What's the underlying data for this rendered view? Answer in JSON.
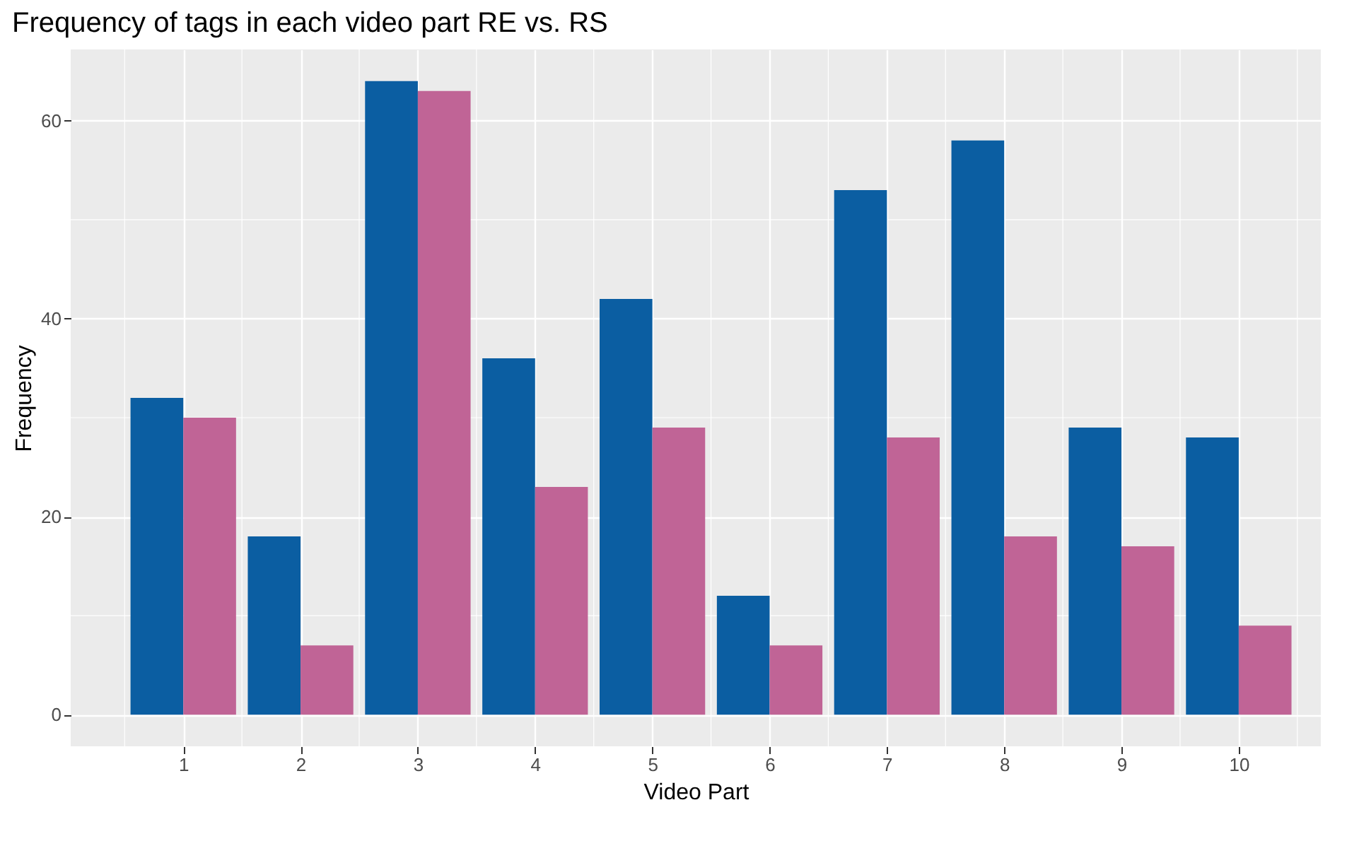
{
  "chart_data": {
    "type": "bar",
    "title": "Frequency of tags in each video part RE vs. RS",
    "xlabel": "Video Part",
    "ylabel": "Frequency",
    "x": [
      1,
      2,
      3,
      4,
      5,
      6,
      7,
      8,
      9,
      10
    ],
    "series": [
      {
        "color": "#0b5ea2",
        "values": [
          32,
          18,
          64,
          36,
          42,
          12,
          53,
          58,
          29,
          28
        ]
      },
      {
        "color": "#c06496",
        "values": [
          30,
          7,
          63,
          23,
          29,
          7,
          28,
          18,
          17,
          9
        ]
      }
    ],
    "xlim": [
      0.04,
      10.7
    ],
    "xticks": [
      1,
      2,
      3,
      4,
      5,
      6,
      7,
      8,
      9,
      10
    ],
    "ylim": [
      -3.2,
      67.2
    ],
    "yticks": [
      0,
      20,
      40,
      60
    ],
    "grid": true
  }
}
